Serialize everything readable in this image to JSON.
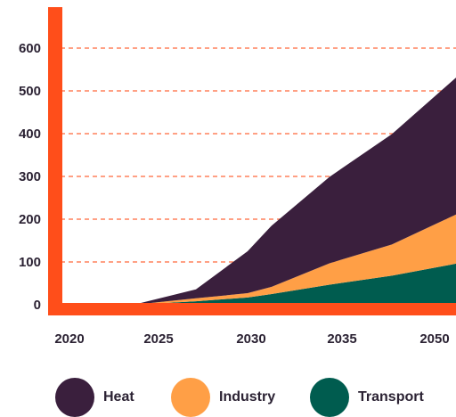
{
  "chart_data": {
    "type": "area",
    "stacked": true,
    "x": [
      2020,
      2024,
      2027,
      2030,
      2032,
      2035,
      2038,
      2050
    ],
    "x_tick_labels": [
      "2020",
      "2025",
      "2030",
      "2035",
      "2050"
    ],
    "y_tick_labels": [
      "0",
      "100",
      "200",
      "300",
      "400",
      "500",
      "600"
    ],
    "ylim": [
      0,
      600
    ],
    "grid": true,
    "legend_position": "bottom",
    "series": [
      {
        "name": "Transport",
        "color": "#005c4f",
        "values": [
          0,
          0,
          8,
          17,
          25,
          47,
          68,
          96
        ]
      },
      {
        "name": "Industry",
        "color": "#ff9f46",
        "values": [
          0,
          0,
          7,
          10,
          17,
          50,
          73,
          115
        ]
      },
      {
        "name": "Heat",
        "color": "#3a1f3d",
        "values": [
          0,
          0,
          21,
          98,
          143,
          202,
          258,
          320
        ]
      }
    ],
    "axis_color": "#ff4e1a",
    "grid_color": "#ff4e1a"
  }
}
